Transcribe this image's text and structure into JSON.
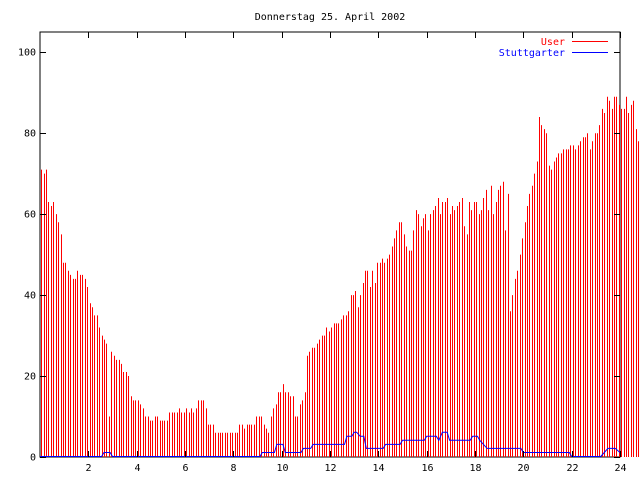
{
  "chart_data": {
    "type": "bar",
    "title": "Donnerstag 25. April 2002",
    "xlabel": "",
    "ylabel": "",
    "xlim": [
      0,
      24
    ],
    "ylim": [
      0,
      105
    ],
    "x_ticks": [
      "2",
      "4",
      "6",
      "8",
      "10",
      "12",
      "14",
      "16",
      "18",
      "20",
      "22",
      "24"
    ],
    "y_ticks": [
      "0",
      "20",
      "40",
      "60",
      "80",
      "100"
    ],
    "legend_position": "top-right",
    "grid": false,
    "series": [
      {
        "name": "User",
        "type": "impulse",
        "color": "#ff0000",
        "start_hour": 0.05,
        "step_hours": 0.1,
        "values": [
          71,
          70,
          71,
          63,
          62,
          63,
          60,
          58,
          55,
          48,
          48,
          46,
          45,
          44,
          44,
          46,
          45,
          45,
          44,
          42,
          38,
          37,
          35,
          35,
          32,
          30,
          29,
          28,
          10,
          26,
          25,
          24,
          24,
          23,
          21,
          21,
          20,
          15,
          14,
          14,
          14,
          13,
          12,
          10,
          10,
          9,
          9,
          10,
          10,
          9,
          9,
          9,
          9,
          11,
          11,
          11,
          11,
          12,
          11,
          11,
          12,
          11,
          12,
          11,
          12,
          14,
          14,
          14,
          12,
          8,
          8,
          8,
          6,
          6,
          6,
          6,
          6,
          6,
          6,
          6,
          6,
          6,
          8,
          8,
          7,
          8,
          8,
          8,
          8,
          10,
          10,
          10,
          8,
          7,
          6,
          10,
          12,
          13,
          16,
          16,
          18,
          16,
          16,
          15,
          15,
          10,
          10,
          13,
          14,
          16,
          25,
          26,
          27,
          27,
          28,
          29,
          30,
          30,
          32,
          31,
          32,
          33,
          33,
          33,
          34,
          35,
          35,
          36,
          40,
          40,
          41,
          37,
          40,
          43,
          46,
          46,
          42,
          46,
          43,
          48,
          48,
          49,
          48,
          49,
          50,
          52,
          54,
          56,
          58,
          58,
          55,
          52,
          51,
          51,
          56,
          61,
          60,
          57,
          59,
          60,
          56,
          60,
          61,
          62,
          64,
          60,
          63,
          63,
          64,
          60,
          62,
          61,
          62,
          63,
          64,
          57,
          55,
          63,
          61,
          63,
          63,
          60,
          61,
          64,
          66,
          61,
          67,
          60,
          63,
          66,
          67,
          68,
          56,
          65,
          36,
          40,
          44,
          46,
          50,
          54,
          58,
          62,
          65,
          67,
          70,
          73,
          84,
          82,
          81,
          80,
          72,
          71,
          73,
          74,
          75,
          75,
          76,
          76,
          76,
          77,
          77,
          76,
          77,
          78,
          79,
          79,
          80,
          76,
          78,
          80,
          80,
          82,
          86,
          85,
          89,
          88,
          86,
          89,
          89,
          87,
          86,
          86,
          89,
          85,
          87,
          88,
          81,
          78,
          77,
          76,
          74,
          73,
          75,
          76,
          72,
          71,
          70,
          70,
          71,
          70,
          68,
          66,
          66,
          65,
          65,
          60,
          60,
          66
        ]
      },
      {
        "name": "Stuttgarter",
        "type": "line",
        "color": "#0000ff",
        "points": [
          [
            0,
            0
          ],
          [
            2.55,
            0
          ],
          [
            2.65,
            1
          ],
          [
            2.9,
            1
          ],
          [
            3.0,
            0
          ],
          [
            9.1,
            0
          ],
          [
            9.2,
            1
          ],
          [
            9.7,
            1
          ],
          [
            9.8,
            3
          ],
          [
            10.05,
            3
          ],
          [
            10.15,
            1
          ],
          [
            10.8,
            1
          ],
          [
            10.9,
            2
          ],
          [
            11.2,
            2
          ],
          [
            11.3,
            3
          ],
          [
            12.6,
            3
          ],
          [
            12.7,
            5
          ],
          [
            12.9,
            5
          ],
          [
            13.0,
            6
          ],
          [
            13.1,
            6
          ],
          [
            13.25,
            5
          ],
          [
            13.4,
            5
          ],
          [
            13.5,
            2
          ],
          [
            14.2,
            2
          ],
          [
            14.3,
            3
          ],
          [
            14.9,
            3
          ],
          [
            15.0,
            4
          ],
          [
            15.9,
            4
          ],
          [
            16.0,
            5
          ],
          [
            16.4,
            5
          ],
          [
            16.5,
            4
          ],
          [
            16.65,
            6
          ],
          [
            16.85,
            6
          ],
          [
            16.95,
            4
          ],
          [
            17.8,
            4
          ],
          [
            17.9,
            5
          ],
          [
            18.1,
            5
          ],
          [
            18.2,
            4
          ],
          [
            18.35,
            3
          ],
          [
            18.5,
            2
          ],
          [
            19.9,
            2
          ],
          [
            20.0,
            1
          ],
          [
            21.9,
            1
          ],
          [
            22.0,
            0
          ],
          [
            23.2,
            0
          ],
          [
            23.35,
            1
          ],
          [
            23.5,
            2
          ],
          [
            23.8,
            2
          ],
          [
            24.0,
            1
          ]
        ]
      }
    ]
  }
}
